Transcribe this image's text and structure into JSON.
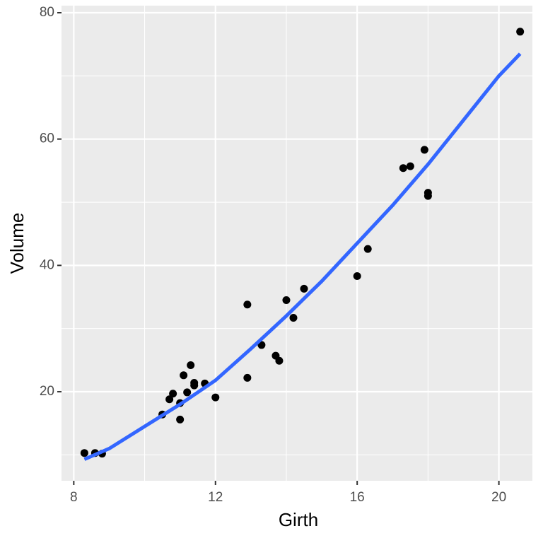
{
  "chart_data": {
    "type": "scatter",
    "x_label": "Girth",
    "y_label": "Volume",
    "xlim": [
      7.654,
      20.946
    ],
    "ylim": [
      5.9,
      81.12
    ],
    "xticks": [
      8,
      12,
      16,
      20
    ],
    "yticks": [
      20,
      40,
      60,
      80
    ],
    "x_minor_grid": [
      10,
      14,
      18
    ],
    "y_minor_grid": [
      10,
      30,
      50,
      70
    ],
    "grid": true,
    "series": [
      {
        "color": "#000000",
        "x": [
          8.3,
          8.6,
          8.8,
          10.5,
          10.7,
          10.8,
          11.0,
          11.0,
          11.1,
          11.2,
          11.3,
          11.4,
          11.4,
          11.7,
          12.0,
          12.9,
          12.9,
          13.3,
          13.7,
          13.8,
          14.0,
          14.2,
          14.5,
          16.0,
          16.3,
          17.3,
          17.5,
          17.9,
          18.0,
          18.0,
          20.6
        ],
        "values": [
          10.3,
          10.3,
          10.2,
          16.4,
          18.8,
          19.7,
          15.6,
          18.2,
          22.6,
          19.9,
          24.2,
          21.0,
          21.4,
          21.3,
          19.1,
          22.2,
          33.8,
          27.4,
          25.7,
          24.9,
          34.5,
          31.7,
          36.3,
          38.3,
          42.6,
          55.4,
          55.7,
          58.3,
          51.5,
          51.0,
          77.0
        ]
      },
      {
        "color": "#3366ff",
        "line": true,
        "x": [
          8.3,
          9,
          10,
          11,
          12,
          13,
          14,
          15,
          16,
          17,
          18,
          19,
          20,
          20.6
        ],
        "values": [
          9.3,
          11.0,
          14.5,
          18.0,
          21.8,
          26.8,
          32.0,
          37.5,
          43.5,
          49.5,
          56.0,
          63.0,
          70.0,
          73.5
        ]
      }
    ]
  }
}
